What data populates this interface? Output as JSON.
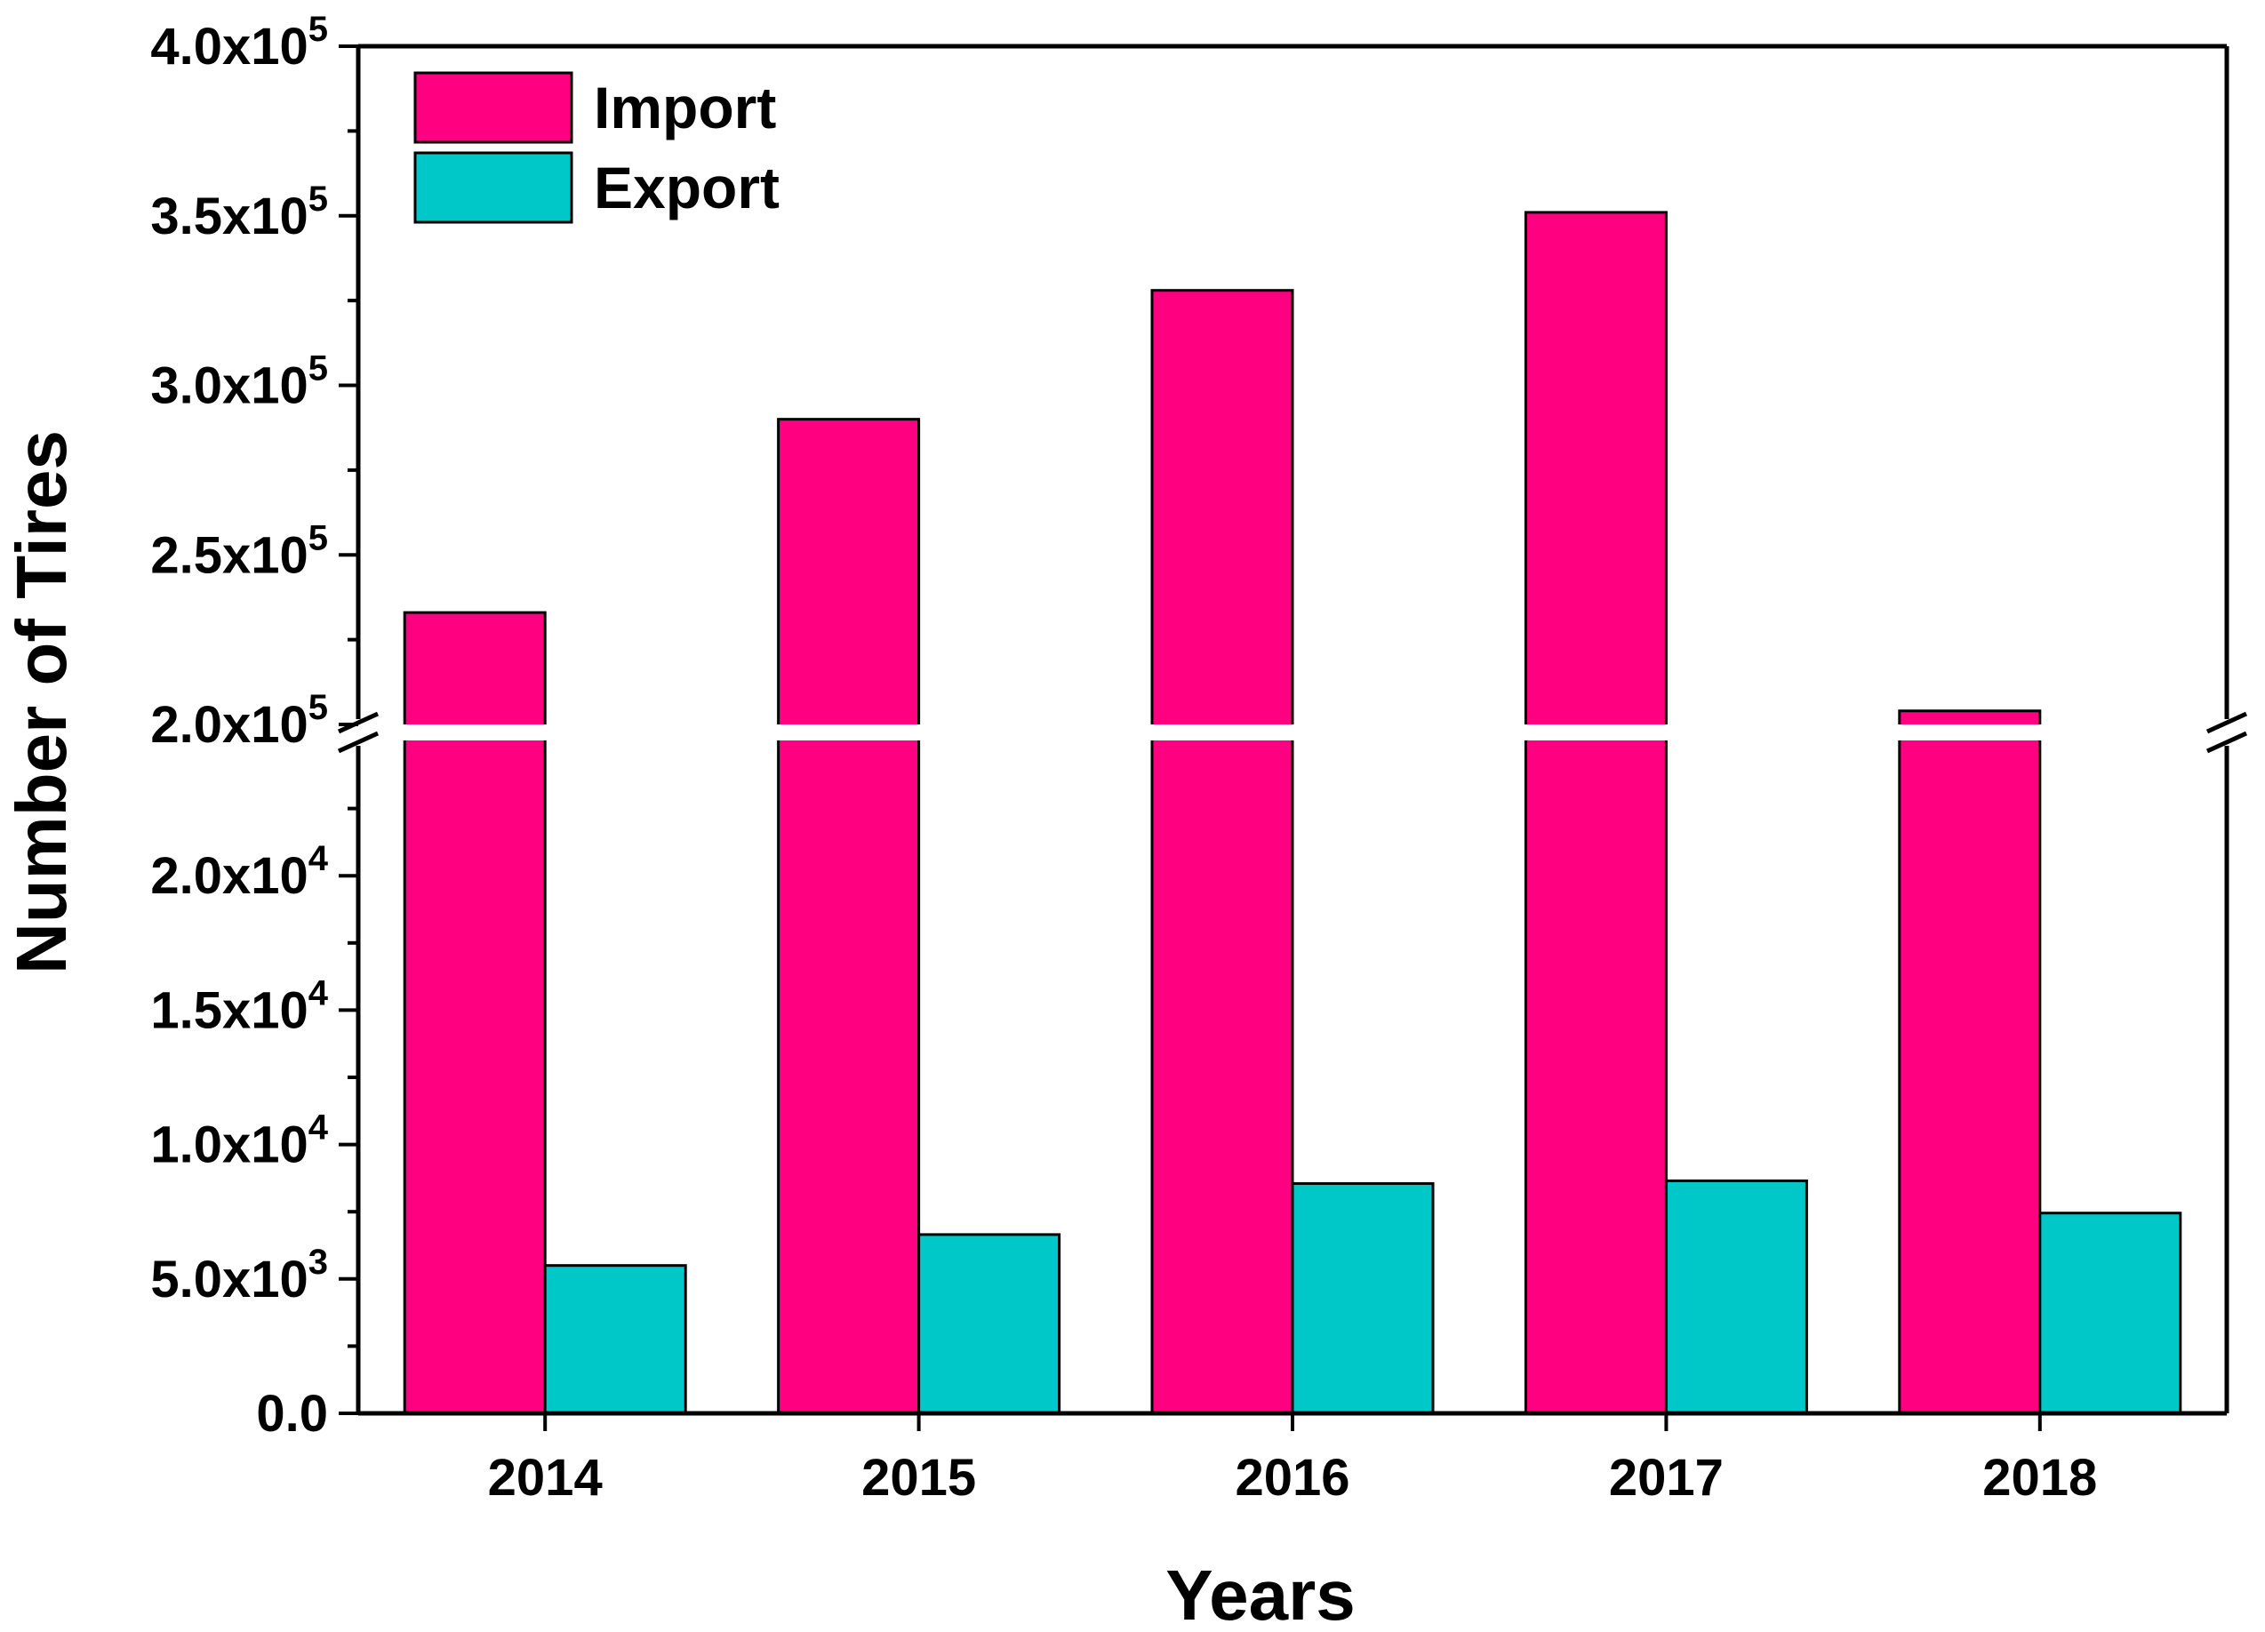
{
  "chart_data": {
    "type": "bar",
    "title": "",
    "xlabel": "Years",
    "ylabel": "Number of Tires",
    "categories": [
      "2014",
      "2015",
      "2016",
      "2017",
      "2018"
    ],
    "series": [
      {
        "name": "Import",
        "color": "#ff0080",
        "values": [
          233000,
          290000,
          328000,
          351000,
          204000
        ]
      },
      {
        "name": "Export",
        "color": "#00c8c8",
        "values": [
          5500,
          6650,
          8550,
          8650,
          7450
        ]
      }
    ],
    "y_axis_break": true,
    "ylim_lower": [
      0,
      25000
    ],
    "ylim_upper": [
      200000,
      400000
    ],
    "lower_ticks": [
      {
        "value": 0,
        "mantissa": "0.0",
        "exponent": ""
      },
      {
        "value": 5000,
        "mantissa": "5.0x10",
        "exponent": "3"
      },
      {
        "value": 10000,
        "mantissa": "1.0x10",
        "exponent": "4"
      },
      {
        "value": 15000,
        "mantissa": "1.5x10",
        "exponent": "4"
      },
      {
        "value": 20000,
        "mantissa": "2.0x10",
        "exponent": "4"
      }
    ],
    "upper_ticks": [
      {
        "value": 200000,
        "mantissa": "2.0x10",
        "exponent": "5"
      },
      {
        "value": 250000,
        "mantissa": "2.5x10",
        "exponent": "5"
      },
      {
        "value": 300000,
        "mantissa": "3.0x10",
        "exponent": "5"
      },
      {
        "value": 350000,
        "mantissa": "3.5x10",
        "exponent": "5"
      },
      {
        "value": 400000,
        "mantissa": "4.0x10",
        "exponent": "5"
      }
    ],
    "legend_position": "top-left",
    "grid": false
  }
}
